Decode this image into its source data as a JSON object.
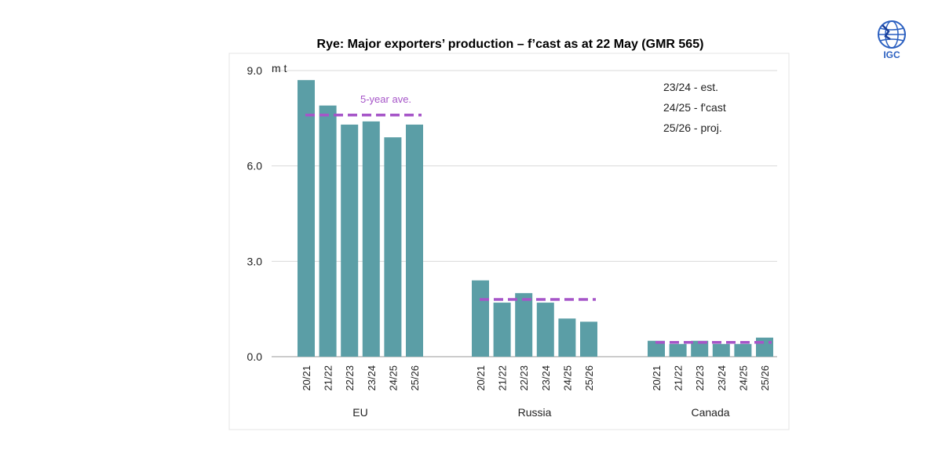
{
  "logo": {
    "text": "IGC",
    "icon": "globe-icon"
  },
  "chart_data": {
    "type": "bar",
    "title": "Rye: Major exporters’ production – f’cast as at 22 May (GMR 565)",
    "unit_label": "m t",
    "ylim": [
      0,
      9
    ],
    "yticks": [
      "9.0",
      "6.0",
      "3.0",
      "0.0"
    ],
    "ytick_values": [
      9,
      6,
      3,
      0
    ],
    "grid": true,
    "bar_color": "#5b9ea6",
    "avg_color": "#a655c8",
    "categories": [
      "20/21",
      "21/22",
      "22/23",
      "23/24",
      "24/25",
      "25/26"
    ],
    "groups": [
      {
        "name": "EU",
        "values": [
          8.7,
          7.9,
          7.3,
          7.4,
          6.9,
          7.3
        ],
        "five_year_avg": 7.6,
        "avg_label": "5-year ave."
      },
      {
        "name": "Russia",
        "values": [
          2.4,
          1.7,
          2.0,
          1.7,
          1.2,
          1.1
        ],
        "five_year_avg": 1.8
      },
      {
        "name": "Canada",
        "values": [
          0.5,
          0.4,
          0.5,
          0.4,
          0.4,
          0.6
        ],
        "five_year_avg": 0.45
      }
    ],
    "notes": [
      "23/24 - est.",
      "24/25 - f'cast",
      "25/26 - proj."
    ]
  }
}
